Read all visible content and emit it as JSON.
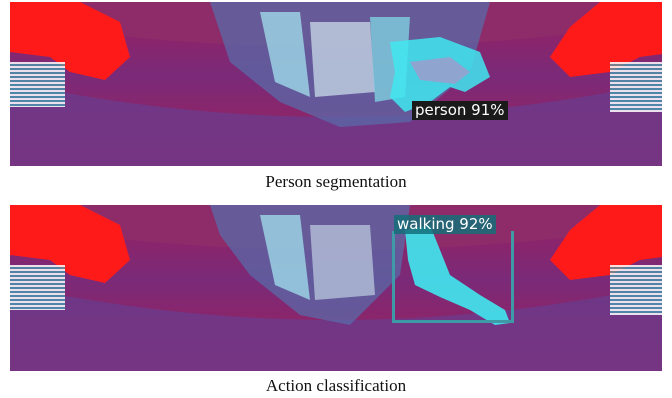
{
  "panels": [
    {
      "caption": "Person segmentation",
      "detection_label": "person 91%"
    },
    {
      "caption": "Action classification",
      "detection_label": "walking 92%"
    }
  ],
  "colors": {
    "background_magenta": "#8a1a55",
    "floor_purple": "#6a3a8a",
    "highlight_red": "#ff1010",
    "segmentation_cyan": "#40e8f0",
    "bbox_teal": "#3e9aa6"
  }
}
